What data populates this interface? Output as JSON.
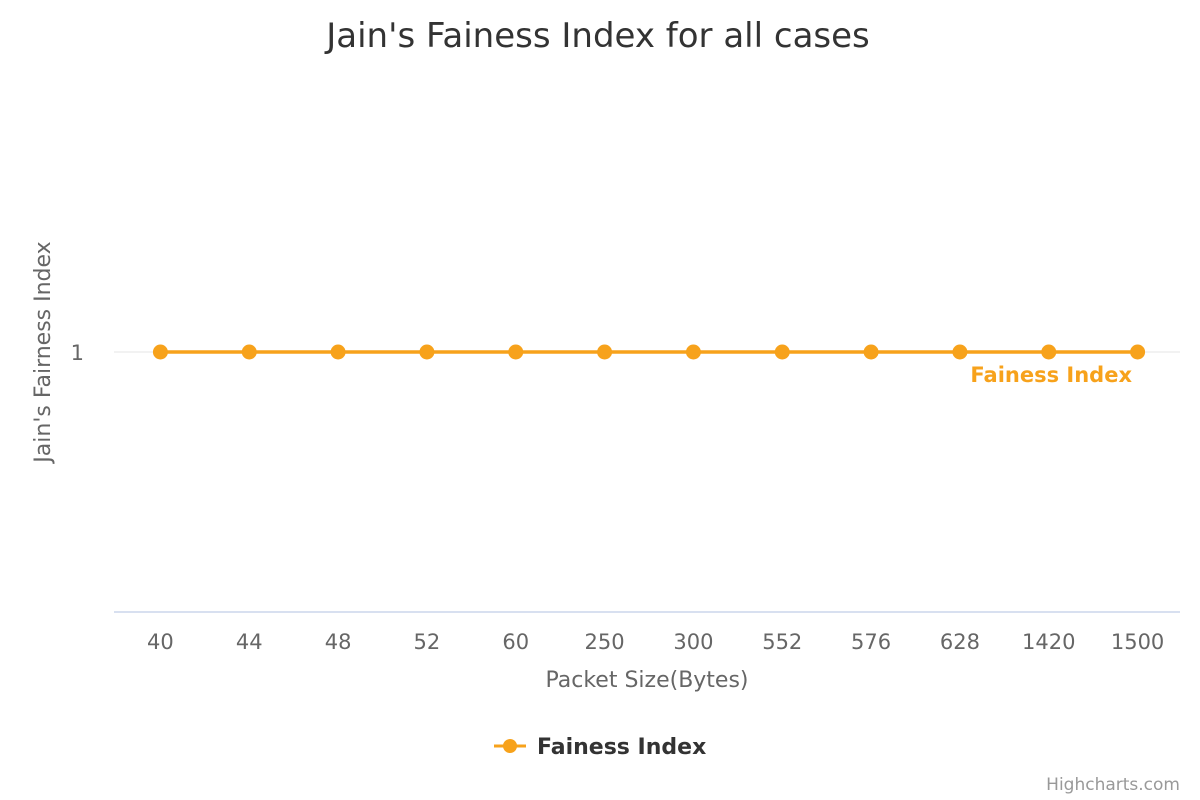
{
  "chart_data": {
    "type": "line",
    "title": "Jain's Fainess Index for all cases",
    "xlabel": "Packet Size(Bytes)",
    "ylabel": "Jain's Fairness Index",
    "categories": [
      "40",
      "44",
      "48",
      "52",
      "60",
      "250",
      "300",
      "552",
      "576",
      "628",
      "1420",
      "1500"
    ],
    "yticks": [
      "1"
    ],
    "series": [
      {
        "name": "Fainess Index",
        "color": "#f7a21b",
        "values": [
          1,
          1,
          1,
          1,
          1,
          1,
          1,
          1,
          1,
          1,
          1,
          1
        ]
      }
    ],
    "grid": true,
    "legend_position": "bottom-center"
  },
  "credits": "Highcharts.com"
}
